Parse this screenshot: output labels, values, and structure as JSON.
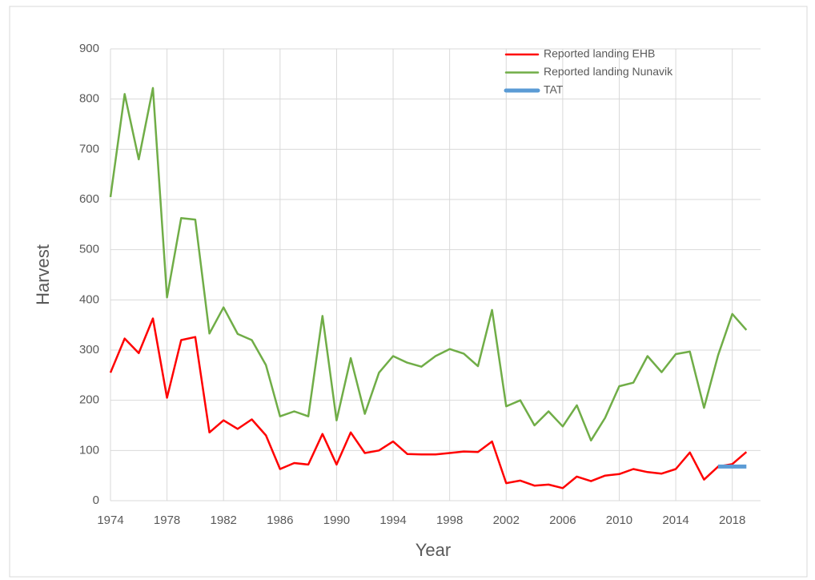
{
  "chart_data": {
    "type": "line",
    "x_label": "Year",
    "y_label": "Harvest",
    "x": [
      1974,
      1975,
      1976,
      1977,
      1978,
      1979,
      1980,
      1981,
      1982,
      1983,
      1984,
      1985,
      1986,
      1987,
      1988,
      1989,
      1990,
      1991,
      1992,
      1993,
      1994,
      1995,
      1996,
      1997,
      1998,
      1999,
      2000,
      2001,
      2002,
      2003,
      2004,
      2005,
      2006,
      2007,
      2008,
      2009,
      2010,
      2011,
      2012,
      2013,
      2014,
      2015,
      2016,
      2017,
      2018,
      2019
    ],
    "series": [
      {
        "name": "Reported landing EHB",
        "color": "#ff0000",
        "values": [
          255,
          323,
          294,
          363,
          205,
          320,
          326,
          136,
          160,
          143,
          162,
          130,
          63,
          75,
          72,
          133,
          72,
          136,
          95,
          100,
          118,
          93,
          92,
          92,
          95,
          98,
          97,
          118,
          35,
          40,
          30,
          32,
          25,
          48,
          39,
          50,
          53,
          63,
          57,
          54,
          63,
          96,
          42,
          68,
          73,
          97
        ]
      },
      {
        "name": "Reported landing Nunavik",
        "color": "#70ad47",
        "values": [
          605,
          810,
          680,
          822,
          405,
          563,
          560,
          333,
          385,
          332,
          320,
          270,
          168,
          178,
          168,
          368,
          160,
          284,
          173,
          255,
          288,
          275,
          267,
          288,
          302,
          293,
          268,
          380,
          188,
          200,
          150,
          178,
          148,
          190,
          120,
          165,
          228,
          235,
          288,
          256,
          292,
          297,
          185,
          290,
          372,
          340
        ]
      },
      {
        "name": "TAT",
        "color": "#5b9bd5",
        "values": [
          null,
          null,
          null,
          null,
          null,
          null,
          null,
          null,
          null,
          null,
          null,
          null,
          null,
          null,
          null,
          null,
          null,
          null,
          null,
          null,
          null,
          null,
          null,
          null,
          null,
          null,
          null,
          null,
          null,
          null,
          null,
          null,
          null,
          null,
          null,
          null,
          null,
          null,
          null,
          null,
          null,
          null,
          null,
          68,
          68,
          68
        ]
      }
    ],
    "xlim": [
      1974,
      2020
    ],
    "xticks": [
      1974,
      1978,
      1982,
      1986,
      1990,
      1994,
      1998,
      2002,
      2006,
      2010,
      2014,
      2018
    ],
    "ylim": [
      0,
      900
    ],
    "yticks": [
      0,
      100,
      200,
      300,
      400,
      500,
      600,
      700,
      800,
      900
    ],
    "grid": true,
    "legend": "upper-right"
  }
}
